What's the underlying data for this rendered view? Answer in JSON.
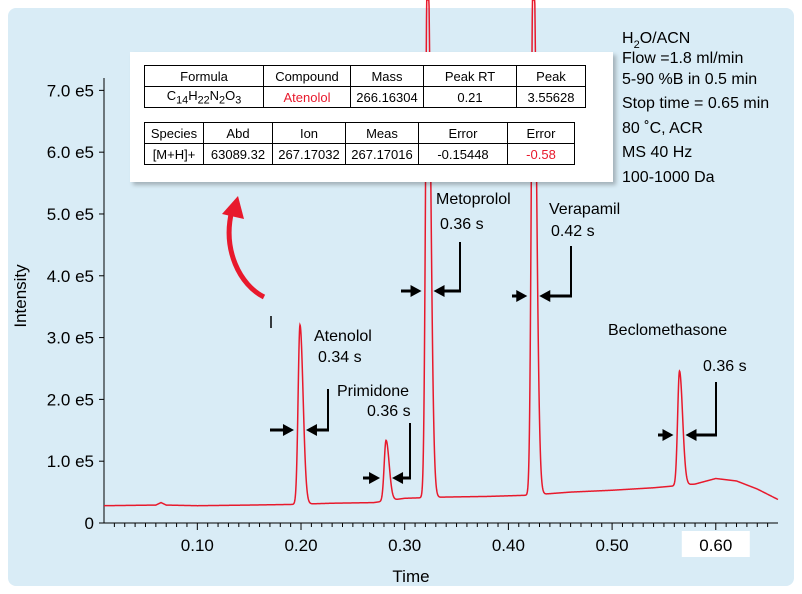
{
  "colors": {
    "panel_bg": "#d9ecf6",
    "trace": "#e8192c",
    "arrow_red": "#e8192c",
    "axis": "#000000"
  },
  "chart_data": {
    "type": "line",
    "xlabel": "Time",
    "ylabel": "Intensity",
    "xlim": [
      0.01,
      0.66
    ],
    "ylim": [
      0,
      720000.0
    ],
    "x_ticks": [
      {
        "value": 0.1,
        "label": "0.10",
        "highlight": false
      },
      {
        "value": 0.2,
        "label": "0.20",
        "highlight": false
      },
      {
        "value": 0.3,
        "label": "0.30",
        "highlight": false
      },
      {
        "value": 0.4,
        "label": "0.40",
        "highlight": false
      },
      {
        "value": 0.5,
        "label": "0.50",
        "highlight": false
      },
      {
        "value": 0.6,
        "label": "0.60",
        "highlight": true
      }
    ],
    "y_ticks": [
      {
        "value": 0,
        "label": "0"
      },
      {
        "value": 100000,
        "label": "1.0 e5"
      },
      {
        "value": 200000,
        "label": "2.0 e5"
      },
      {
        "value": 300000,
        "label": "3.0 e5"
      },
      {
        "value": 400000,
        "label": "4.0 e5"
      },
      {
        "value": 500000,
        "label": "5.0 e5"
      },
      {
        "value": 600000,
        "label": "6.0 e5"
      },
      {
        "value": 700000,
        "label": "7.0 e5"
      }
    ],
    "baseline": [
      [
        0.01,
        28000
      ],
      [
        0.06,
        29000
      ],
      [
        0.065,
        33000
      ],
      [
        0.07,
        29000
      ],
      [
        0.1,
        28000
      ],
      [
        0.15,
        29000
      ],
      [
        0.19,
        30000
      ],
      [
        0.23,
        32000
      ],
      [
        0.27,
        33000
      ],
      [
        0.3,
        40000
      ],
      [
        0.34,
        42000
      ],
      [
        0.38,
        43000
      ],
      [
        0.42,
        45000
      ],
      [
        0.46,
        50000
      ],
      [
        0.5,
        53000
      ],
      [
        0.54,
        57000
      ],
      [
        0.56,
        60000
      ],
      [
        0.58,
        63000
      ],
      [
        0.6,
        72000
      ],
      [
        0.62,
        68000
      ],
      [
        0.64,
        55000
      ],
      [
        0.66,
        38000
      ]
    ],
    "peaks": [
      {
        "name": "Atenolol",
        "rt": 0.199,
        "height": 290000,
        "width_s": "0.34 s"
      },
      {
        "name": "Primidone",
        "rt": 0.282,
        "height": 98000,
        "width_s": "0.36 s"
      },
      {
        "name": "Metoprolol",
        "rt": 0.322,
        "height": 900000,
        "width_s": "0.36 s"
      },
      {
        "name": "Verapamil",
        "rt": 0.424,
        "height": 900000,
        "width_s": "0.42 s"
      },
      {
        "name": "Beclomethasone",
        "rt": 0.565,
        "height": 185000,
        "width_s": "0.36 s"
      }
    ]
  },
  "peak_labels": {
    "atenolol": "Atenolol",
    "atenolol_w": "0.34 s",
    "primidone": "Primidone",
    "primidone_w": "0.36 s",
    "metoprolol": "Metoprolol",
    "metoprolol_w": "0.36 s",
    "verapamil": "Verapamil",
    "verapamil_w": "0.42 s",
    "beclomethasone": "Beclomethasone",
    "beclomethasone_w": "0.36 s"
  },
  "conditions": {
    "solvent_h": "H",
    "solvent_2": "2",
    "solvent_rest": "O/ACN",
    "flow": "Flow =1.8 ml/min",
    "gradient": "5-90 %B in 0.5 min",
    "stop": "Stop time = 0.65 min",
    "temp": "80 ˚C, ACR",
    "ms": "MS 40 Hz",
    "range": "100-1000 Da"
  },
  "table1": {
    "headers": [
      "Formula",
      "Compound",
      "Mass",
      "Peak RT",
      "Peak"
    ],
    "formula": {
      "c": "C",
      "c_n": "14",
      "h": "H",
      "h_n": "22",
      "n": "N",
      "n_n": "2",
      "o": "O",
      "o_n": "3"
    },
    "compound": "Atenolol",
    "mass": "266.16304",
    "rt": "0.21",
    "peak": "3.55628"
  },
  "table2": {
    "headers": [
      "Species",
      "Abd",
      "Ion",
      "Meas",
      "Error",
      "Error"
    ],
    "row": [
      "[M+H]+",
      "63089.32",
      "267.17032",
      "267.17016",
      "-0.15448",
      "-0.58"
    ]
  }
}
